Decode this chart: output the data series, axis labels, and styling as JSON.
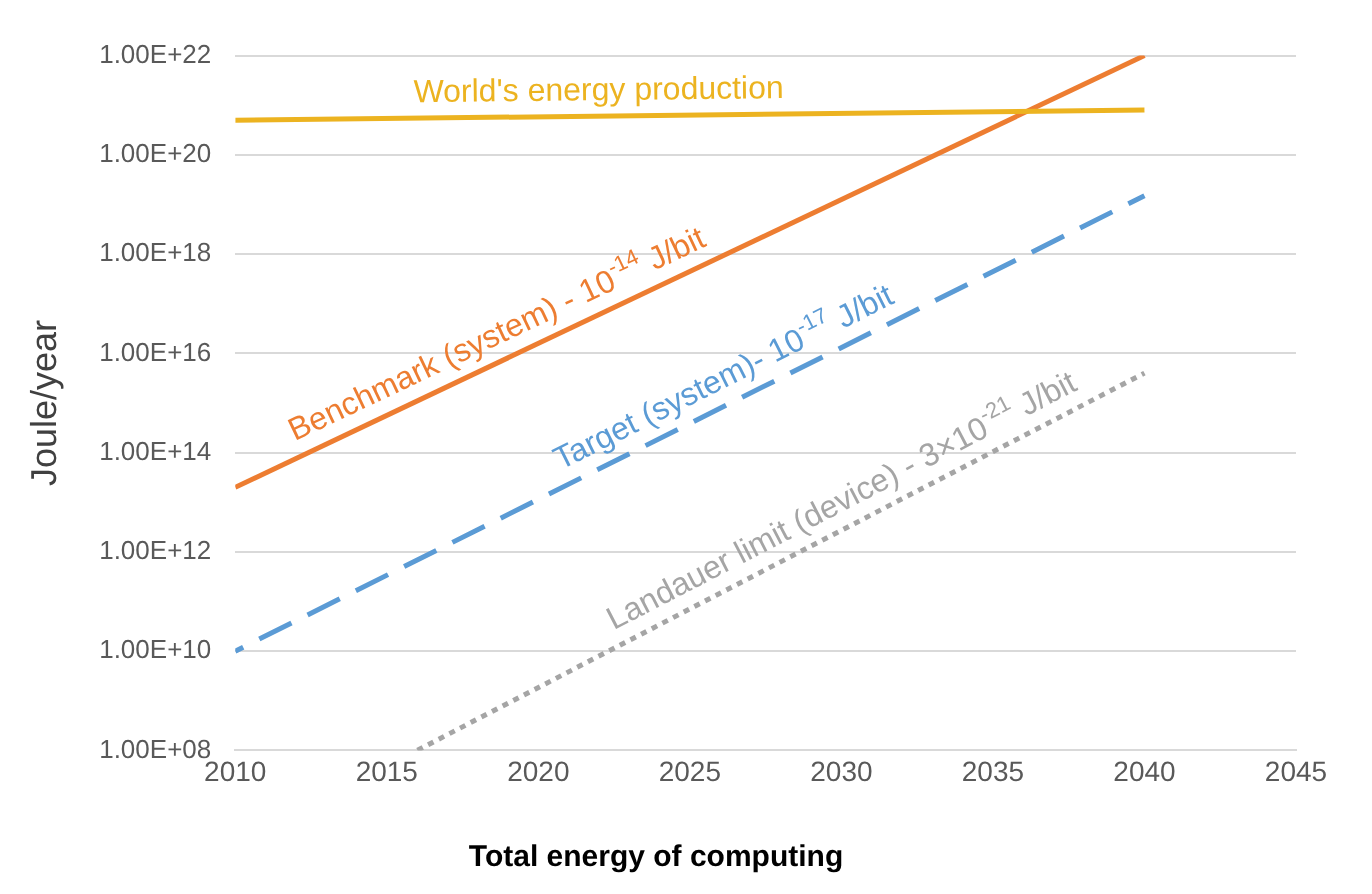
{
  "chart_data": {
    "type": "line",
    "title": "Total energy of computing",
    "ylabel": "Joule/year",
    "log": "y",
    "grid": "y",
    "legend": false,
    "marker": "none",
    "xlim": [
      2010,
      2045
    ],
    "xticks": [
      2010,
      2015,
      2020,
      2025,
      2030,
      2035,
      2040,
      2045
    ],
    "ylim": [
      100000000.0,
      1e+22
    ],
    "yticks": [
      {
        "value": 100000000.0,
        "label": "1.00E+08"
      },
      {
        "value": 10000000000.0,
        "label": "1.00E+10"
      },
      {
        "value": 1000000000000.0,
        "label": "1.00E+12"
      },
      {
        "value": 100000000000000.0,
        "label": "1.00E+14"
      },
      {
        "value": 1e+16,
        "label": "1.00E+16"
      },
      {
        "value": 1e+18,
        "label": "1.00E+18"
      },
      {
        "value": 1e+20,
        "label": "1.00E+20"
      },
      {
        "value": 1e+22,
        "label": "1.00E+22"
      }
    ],
    "series": [
      {
        "name": "World's energy production",
        "color": "#ecb320",
        "line_style": "solid",
        "x": [
          2010,
          2040
        ],
        "values": [
          5e+20,
          8e+20
        ]
      },
      {
        "name": "Benchmark (system) - 10$^{-14}$ J/bit",
        "color": "#ed7d31",
        "line_style": "solid",
        "x": [
          2010,
          2040
        ],
        "values": [
          20000000000000.0,
          1e+22
        ]
      },
      {
        "name": "Target (system)- 10$^{-17}$ J/bit",
        "color": "#5b9bd5",
        "line_style": "dashed",
        "x": [
          2010,
          2040
        ],
        "values": [
          10000000000.0,
          1.5e+19
        ]
      },
      {
        "name": "Landauer limit (device) - 3×10$^{-21}$ J/bit",
        "color": "#a5a5a5",
        "line_style": "dotted",
        "x": [
          2016,
          2040
        ],
        "values": [
          100000000.0,
          4000000000000000.0
        ]
      }
    ]
  }
}
